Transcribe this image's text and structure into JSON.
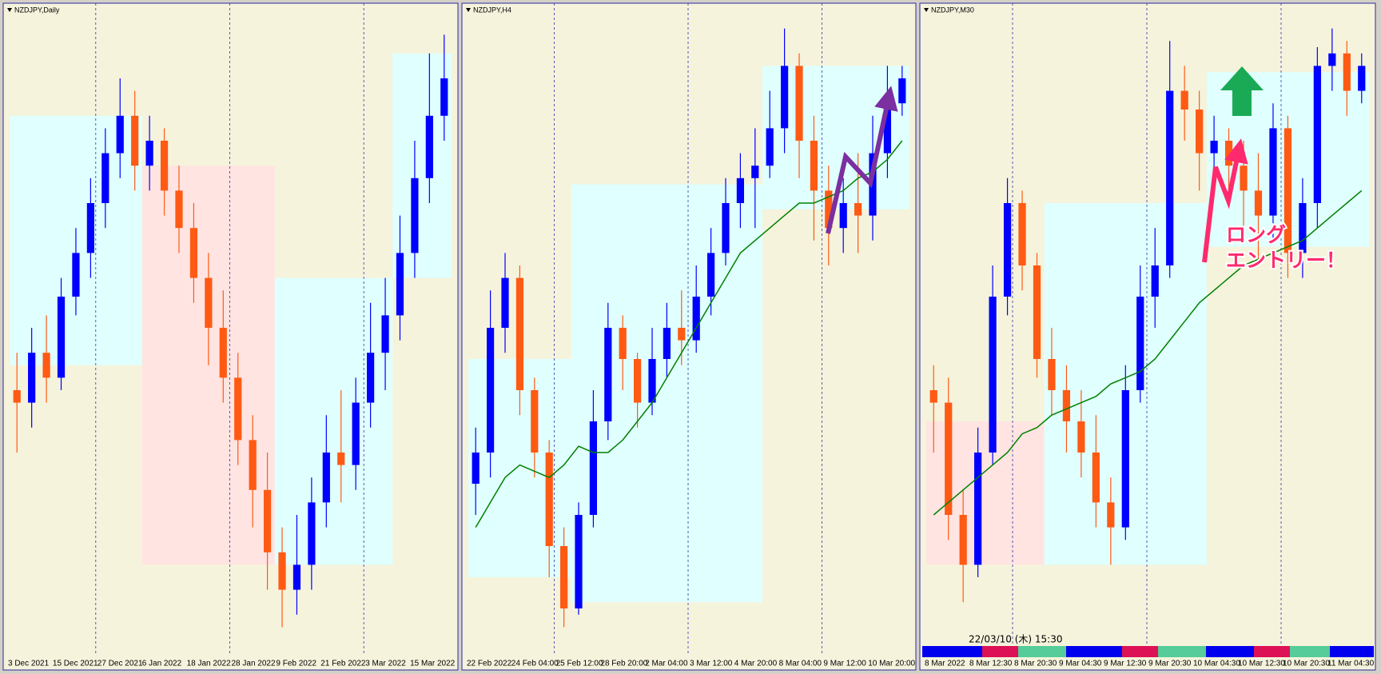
{
  "chart_data": [
    {
      "type": "candlestick",
      "title": "NZDJPY,Daily",
      "x_labels": [
        "3 Dec 2021",
        "15 Dec 2021",
        "27 Dec 2021",
        "6 Jan 2022",
        "18 Jan 2022",
        "28 Jan 2022",
        "9 Feb 2022",
        "21 Feb 2022",
        "3 Mar 2022",
        "15 Mar 2022"
      ],
      "open": [
        40,
        38,
        46,
        42,
        55,
        62,
        70,
        78,
        84,
        76,
        80,
        72,
        66,
        58,
        50,
        42,
        32,
        24,
        14,
        8,
        12,
        22,
        30,
        28,
        38,
        46,
        52,
        62,
        74,
        84
      ],
      "high": [
        46,
        50,
        52,
        58,
        66,
        74,
        82,
        90,
        88,
        84,
        82,
        76,
        70,
        62,
        56,
        46,
        36,
        30,
        18,
        20,
        26,
        36,
        40,
        42,
        54,
        58,
        68,
        80,
        94,
        97
      ],
      "low": [
        30,
        34,
        38,
        40,
        52,
        58,
        66,
        74,
        72,
        72,
        68,
        62,
        54,
        44,
        38,
        28,
        18,
        8,
        2,
        4,
        8,
        18,
        22,
        24,
        34,
        40,
        48,
        58,
        70,
        80
      ],
      "close": [
        38,
        46,
        42,
        55,
        62,
        70,
        78,
        84,
        76,
        80,
        72,
        66,
        58,
        50,
        42,
        32,
        24,
        14,
        8,
        12,
        22,
        30,
        28,
        38,
        46,
        52,
        62,
        74,
        84,
        90
      ],
      "up_color": "#0000ff",
      "down_color": "#ff5a14",
      "ylim": [
        0,
        100
      ],
      "zones": [
        {
          "start": 0,
          "end": 8,
          "low": 44,
          "high": 84,
          "color": "#e0ffff"
        },
        {
          "start": 9,
          "end": 17,
          "low": 12,
          "high": 76,
          "color": "#ffe4e1"
        },
        {
          "start": 18,
          "end": 25,
          "low": 12,
          "high": 58,
          "color": "#e0ffff"
        },
        {
          "start": 26,
          "end": 29,
          "low": 58,
          "high": 94,
          "color": "#e0ffff"
        }
      ]
    },
    {
      "type": "candlestick",
      "title": "NZDJPY,H4",
      "x_labels": [
        "22 Feb 2022",
        "24 Feb 04:00",
        "25 Feb 12:00",
        "28 Feb 20:00",
        "2 Mar 04:00",
        "3 Mar 12:00",
        "4 Mar 20:00",
        "8 Mar 04:00",
        "9 Mar 12:00",
        "10 Mar 20:00"
      ],
      "open": [
        25,
        30,
        50,
        58,
        40,
        30,
        15,
        5,
        20,
        35,
        50,
        45,
        38,
        45,
        50,
        48,
        55,
        62,
        70,
        74,
        76,
        82,
        92,
        80,
        72,
        66,
        70,
        68,
        78,
        86
      ],
      "high": [
        34,
        56,
        62,
        60,
        42,
        32,
        18,
        22,
        40,
        54,
        52,
        46,
        50,
        54,
        56,
        60,
        66,
        74,
        78,
        82,
        88,
        98,
        94,
        84,
        76,
        74,
        78,
        84,
        92,
        92
      ],
      "low": [
        20,
        26,
        46,
        36,
        26,
        10,
        2,
        4,
        18,
        32,
        40,
        34,
        36,
        42,
        44,
        46,
        52,
        60,
        66,
        66,
        74,
        78,
        74,
        64,
        60,
        62,
        62,
        64,
        74,
        84
      ],
      "close": [
        30,
        50,
        58,
        40,
        30,
        15,
        5,
        20,
        35,
        50,
        45,
        38,
        45,
        50,
        48,
        55,
        62,
        70,
        74,
        76,
        82,
        92,
        80,
        72,
        66,
        70,
        68,
        78,
        86,
        90
      ],
      "up_color": "#0000ff",
      "down_color": "#ff5a14",
      "ylim": [
        0,
        100
      ],
      "ma": {
        "color": "#008000",
        "values": [
          18,
          22,
          26,
          28,
          27,
          26,
          28,
          31,
          30,
          30,
          32,
          35,
          38,
          42,
          46,
          50,
          54,
          58,
          62,
          64,
          66,
          68,
          70,
          70,
          71,
          72,
          74,
          75,
          77,
          80
        ]
      },
      "zones": [
        {
          "start": 0,
          "end": 6,
          "low": 10,
          "high": 45,
          "color": "#e0ffff"
        },
        {
          "start": 7,
          "end": 19,
          "low": 6,
          "high": 73,
          "color": "#e0ffff"
        },
        {
          "start": 20,
          "end": 29,
          "low": 69,
          "high": 92,
          "color": "#e0ffff"
        }
      ]
    },
    {
      "type": "candlestick",
      "title": "NZDJPY,M30",
      "x_labels": [
        "8 Mar 2022",
        "8 Mar 12:30",
        "8 Mar 20:30",
        "9 Mar 04:30",
        "9 Mar 12:30",
        "9 Mar 20:30",
        "10 Mar 04:30",
        "10 Mar 12:30",
        "10 Mar 20:30",
        "11 Mar 04:30"
      ],
      "open": [
        40,
        38,
        20,
        12,
        30,
        55,
        70,
        60,
        45,
        40,
        35,
        30,
        22,
        18,
        40,
        55,
        60,
        88,
        85,
        78,
        80,
        76,
        72,
        68,
        82,
        62,
        70,
        92,
        94,
        88
      ],
      "high": [
        44,
        42,
        24,
        34,
        60,
        74,
        72,
        62,
        50,
        44,
        40,
        36,
        26,
        44,
        60,
        66,
        96,
        92,
        88,
        84,
        82,
        80,
        78,
        86,
        84,
        74,
        95,
        98,
        96,
        94
      ],
      "low": [
        30,
        16,
        6,
        10,
        28,
        52,
        56,
        42,
        36,
        30,
        26,
        18,
        12,
        16,
        38,
        50,
        58,
        80,
        72,
        74,
        72,
        66,
        60,
        64,
        58,
        58,
        66,
        88,
        84,
        86
      ],
      "close": [
        38,
        20,
        12,
        30,
        55,
        70,
        60,
        45,
        40,
        35,
        30,
        22,
        18,
        40,
        55,
        60,
        88,
        85,
        78,
        80,
        76,
        72,
        68,
        82,
        62,
        70,
        92,
        94,
        88,
        92
      ],
      "up_color": "#0000ff",
      "down_color": "#ff5a14",
      "ylim": [
        0,
        100
      ],
      "ma": {
        "color": "#008000",
        "values": [
          20,
          22,
          24,
          26,
          28,
          30,
          33,
          34,
          36,
          37,
          38,
          39,
          41,
          42,
          43,
          45,
          48,
          51,
          54,
          56,
          58,
          60,
          61,
          62,
          63,
          64,
          66,
          68,
          70,
          72
        ]
      },
      "zones": [
        {
          "start": 0,
          "end": 7,
          "low": 12,
          "high": 35,
          "color": "#ffe4e1"
        },
        {
          "start": 8,
          "end": 18,
          "low": 12,
          "high": 70,
          "color": "#e0ffff"
        },
        {
          "start": 19,
          "end": 29,
          "low": 63,
          "high": 91,
          "color": "#e0ffff"
        }
      ],
      "annotations": [
        "ロング",
        "エントリー！"
      ],
      "cursor_time": "22/03/10 (木) 15:30"
    }
  ]
}
